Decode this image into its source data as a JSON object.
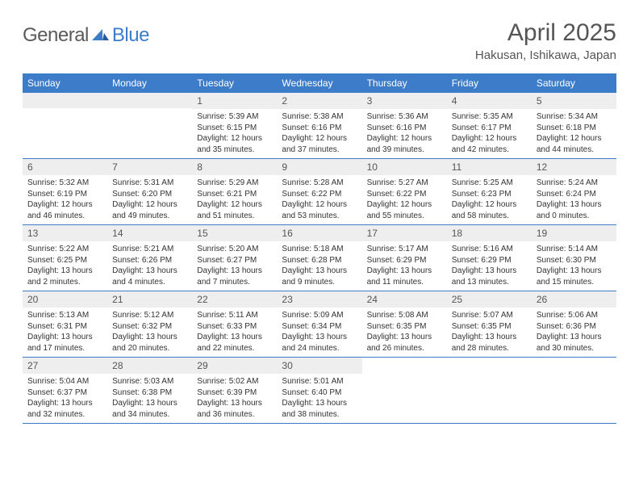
{
  "logo": {
    "general": "General",
    "blue": "Blue"
  },
  "title": "April 2025",
  "location": "Hakusan, Ishikawa, Japan",
  "dayHeaders": [
    "Sunday",
    "Monday",
    "Tuesday",
    "Wednesday",
    "Thursday",
    "Friday",
    "Saturday"
  ],
  "colors": {
    "headerBg": "#3d7cc9",
    "dayNumBg": "#eeeeee",
    "bodyText": "#333333",
    "titleText": "#555555"
  },
  "weeks": [
    [
      null,
      null,
      {
        "n": "1",
        "sr": "Sunrise: 5:39 AM",
        "ss": "Sunset: 6:15 PM",
        "dl": "Daylight: 12 hours and 35 minutes."
      },
      {
        "n": "2",
        "sr": "Sunrise: 5:38 AM",
        "ss": "Sunset: 6:16 PM",
        "dl": "Daylight: 12 hours and 37 minutes."
      },
      {
        "n": "3",
        "sr": "Sunrise: 5:36 AM",
        "ss": "Sunset: 6:16 PM",
        "dl": "Daylight: 12 hours and 39 minutes."
      },
      {
        "n": "4",
        "sr": "Sunrise: 5:35 AM",
        "ss": "Sunset: 6:17 PM",
        "dl": "Daylight: 12 hours and 42 minutes."
      },
      {
        "n": "5",
        "sr": "Sunrise: 5:34 AM",
        "ss": "Sunset: 6:18 PM",
        "dl": "Daylight: 12 hours and 44 minutes."
      }
    ],
    [
      {
        "n": "6",
        "sr": "Sunrise: 5:32 AM",
        "ss": "Sunset: 6:19 PM",
        "dl": "Daylight: 12 hours and 46 minutes."
      },
      {
        "n": "7",
        "sr": "Sunrise: 5:31 AM",
        "ss": "Sunset: 6:20 PM",
        "dl": "Daylight: 12 hours and 49 minutes."
      },
      {
        "n": "8",
        "sr": "Sunrise: 5:29 AM",
        "ss": "Sunset: 6:21 PM",
        "dl": "Daylight: 12 hours and 51 minutes."
      },
      {
        "n": "9",
        "sr": "Sunrise: 5:28 AM",
        "ss": "Sunset: 6:22 PM",
        "dl": "Daylight: 12 hours and 53 minutes."
      },
      {
        "n": "10",
        "sr": "Sunrise: 5:27 AM",
        "ss": "Sunset: 6:22 PM",
        "dl": "Daylight: 12 hours and 55 minutes."
      },
      {
        "n": "11",
        "sr": "Sunrise: 5:25 AM",
        "ss": "Sunset: 6:23 PM",
        "dl": "Daylight: 12 hours and 58 minutes."
      },
      {
        "n": "12",
        "sr": "Sunrise: 5:24 AM",
        "ss": "Sunset: 6:24 PM",
        "dl": "Daylight: 13 hours and 0 minutes."
      }
    ],
    [
      {
        "n": "13",
        "sr": "Sunrise: 5:22 AM",
        "ss": "Sunset: 6:25 PM",
        "dl": "Daylight: 13 hours and 2 minutes."
      },
      {
        "n": "14",
        "sr": "Sunrise: 5:21 AM",
        "ss": "Sunset: 6:26 PM",
        "dl": "Daylight: 13 hours and 4 minutes."
      },
      {
        "n": "15",
        "sr": "Sunrise: 5:20 AM",
        "ss": "Sunset: 6:27 PM",
        "dl": "Daylight: 13 hours and 7 minutes."
      },
      {
        "n": "16",
        "sr": "Sunrise: 5:18 AM",
        "ss": "Sunset: 6:28 PM",
        "dl": "Daylight: 13 hours and 9 minutes."
      },
      {
        "n": "17",
        "sr": "Sunrise: 5:17 AM",
        "ss": "Sunset: 6:29 PM",
        "dl": "Daylight: 13 hours and 11 minutes."
      },
      {
        "n": "18",
        "sr": "Sunrise: 5:16 AM",
        "ss": "Sunset: 6:29 PM",
        "dl": "Daylight: 13 hours and 13 minutes."
      },
      {
        "n": "19",
        "sr": "Sunrise: 5:14 AM",
        "ss": "Sunset: 6:30 PM",
        "dl": "Daylight: 13 hours and 15 minutes."
      }
    ],
    [
      {
        "n": "20",
        "sr": "Sunrise: 5:13 AM",
        "ss": "Sunset: 6:31 PM",
        "dl": "Daylight: 13 hours and 17 minutes."
      },
      {
        "n": "21",
        "sr": "Sunrise: 5:12 AM",
        "ss": "Sunset: 6:32 PM",
        "dl": "Daylight: 13 hours and 20 minutes."
      },
      {
        "n": "22",
        "sr": "Sunrise: 5:11 AM",
        "ss": "Sunset: 6:33 PM",
        "dl": "Daylight: 13 hours and 22 minutes."
      },
      {
        "n": "23",
        "sr": "Sunrise: 5:09 AM",
        "ss": "Sunset: 6:34 PM",
        "dl": "Daylight: 13 hours and 24 minutes."
      },
      {
        "n": "24",
        "sr": "Sunrise: 5:08 AM",
        "ss": "Sunset: 6:35 PM",
        "dl": "Daylight: 13 hours and 26 minutes."
      },
      {
        "n": "25",
        "sr": "Sunrise: 5:07 AM",
        "ss": "Sunset: 6:35 PM",
        "dl": "Daylight: 13 hours and 28 minutes."
      },
      {
        "n": "26",
        "sr": "Sunrise: 5:06 AM",
        "ss": "Sunset: 6:36 PM",
        "dl": "Daylight: 13 hours and 30 minutes."
      }
    ],
    [
      {
        "n": "27",
        "sr": "Sunrise: 5:04 AM",
        "ss": "Sunset: 6:37 PM",
        "dl": "Daylight: 13 hours and 32 minutes."
      },
      {
        "n": "28",
        "sr": "Sunrise: 5:03 AM",
        "ss": "Sunset: 6:38 PM",
        "dl": "Daylight: 13 hours and 34 minutes."
      },
      {
        "n": "29",
        "sr": "Sunrise: 5:02 AM",
        "ss": "Sunset: 6:39 PM",
        "dl": "Daylight: 13 hours and 36 minutes."
      },
      {
        "n": "30",
        "sr": "Sunrise: 5:01 AM",
        "ss": "Sunset: 6:40 PM",
        "dl": "Daylight: 13 hours and 38 minutes."
      },
      null,
      null,
      null
    ]
  ]
}
